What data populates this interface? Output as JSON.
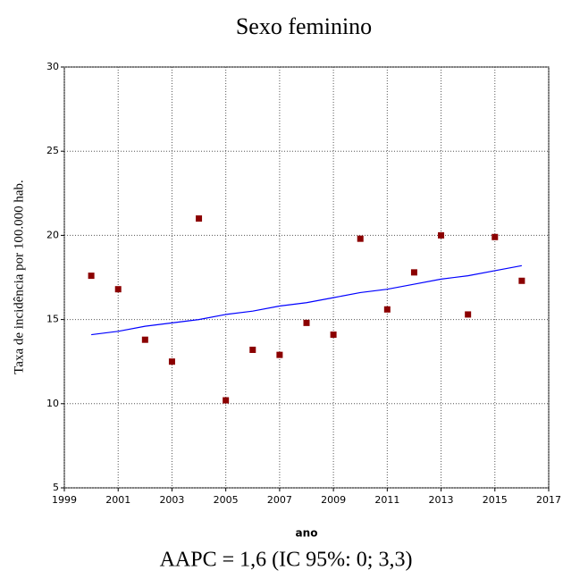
{
  "chart_data": {
    "type": "scatter",
    "title": "Sexo feminino",
    "xlabel": "ano",
    "ylabel": "Taxa de incidência por 100.000 hab.",
    "caption": "AAPC = 1,6 (IC 95%: 0; 3,3)",
    "x": [
      2000,
      2001,
      2002,
      2003,
      2004,
      2005,
      2006,
      2007,
      2008,
      2009,
      2010,
      2011,
      2012,
      2013,
      2014,
      2015,
      2016
    ],
    "values": [
      17.6,
      16.8,
      13.8,
      12.5,
      21.0,
      10.2,
      13.2,
      12.9,
      14.8,
      14.1,
      19.8,
      15.6,
      17.8,
      20.0,
      15.3,
      19.9,
      17.3
    ],
    "color": "#8b0000",
    "trend": {
      "values": [
        14.1,
        14.3,
        14.6,
        14.8,
        15.0,
        15.3,
        15.5,
        15.8,
        16.0,
        16.3,
        16.6,
        16.8,
        17.1,
        17.4,
        17.6,
        17.9,
        18.2
      ],
      "color": "#0000ff"
    },
    "xlim": [
      1999,
      2017
    ],
    "xticks": [
      1999,
      2001,
      2003,
      2005,
      2007,
      2009,
      2011,
      2013,
      2015,
      2017
    ],
    "ylim": [
      5,
      30
    ],
    "yticks": [
      5,
      10,
      15,
      20,
      25,
      30
    ],
    "grid": true
  }
}
